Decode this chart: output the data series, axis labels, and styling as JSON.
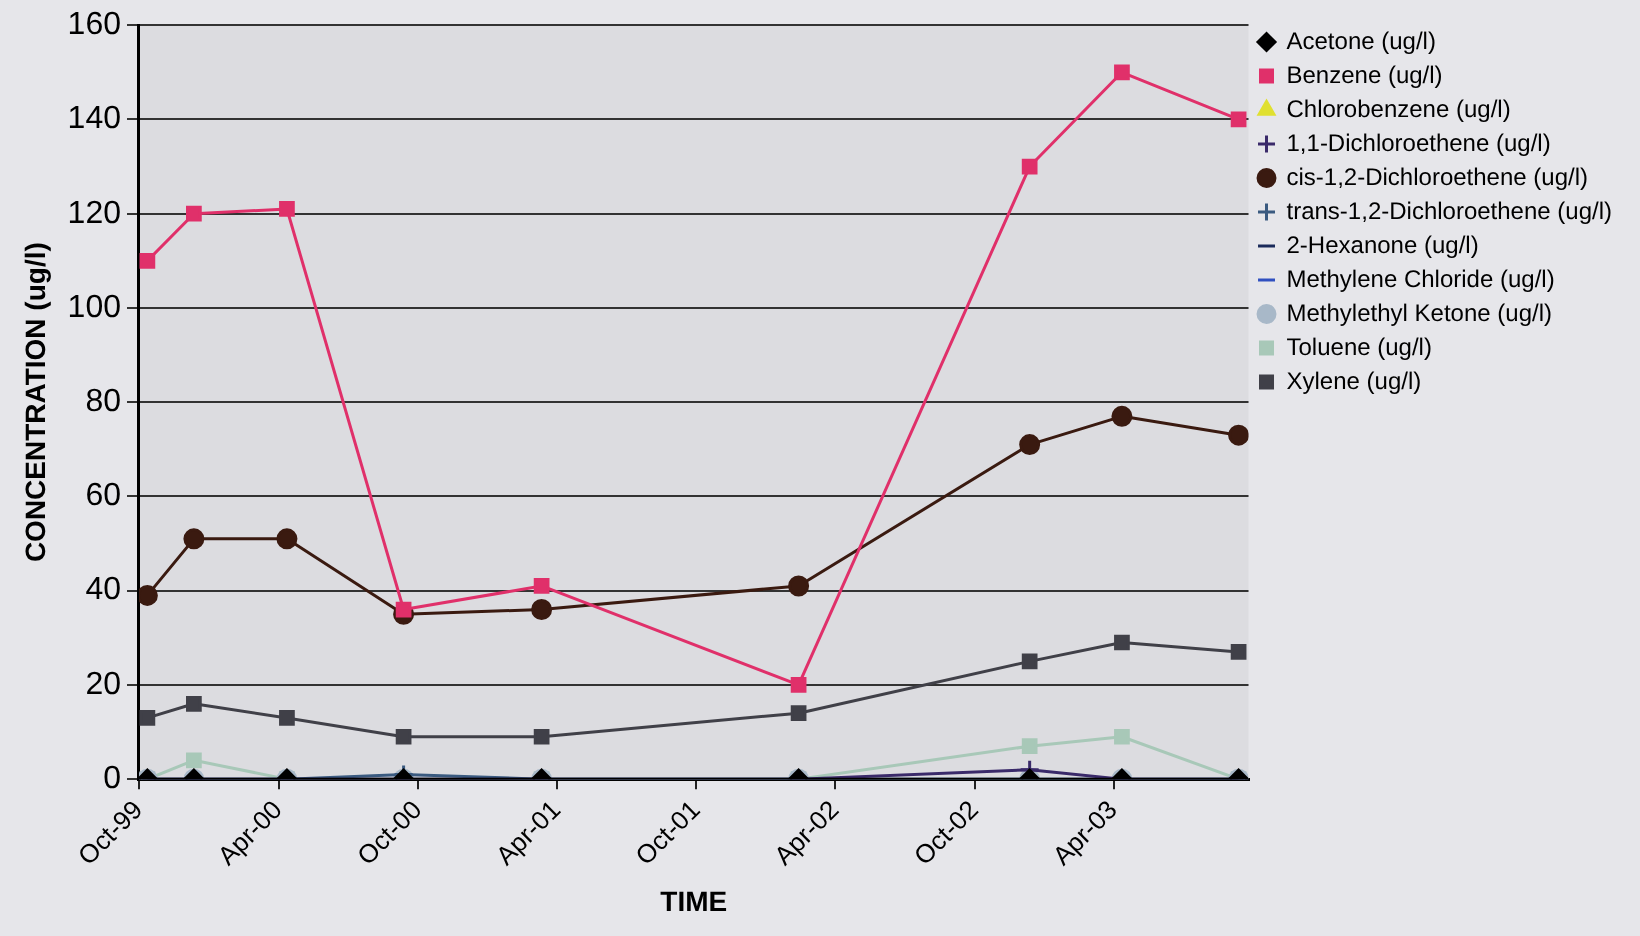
{
  "chart_data": {
    "type": "line",
    "xlabel": "TIME",
    "ylabel": "CONCENTRATION (ug/l)",
    "x": [
      "1999-10-12",
      "1999-12-12",
      "2000-04-12",
      "2000-09-12",
      "2001-03-12",
      "2002-02-12",
      "2002-12-12",
      "2003-04-12",
      "2003-09-12"
    ],
    "xlim": [
      "1999-10-01",
      "2003-09-25"
    ],
    "xticks": [
      {
        "value": "1999-10-01",
        "label": "Oct-99"
      },
      {
        "value": "2000-04-01",
        "label": "Apr-00"
      },
      {
        "value": "2000-10-01",
        "label": "Oct-00"
      },
      {
        "value": "2001-04-01",
        "label": "Apr-01"
      },
      {
        "value": "2001-10-01",
        "label": "Oct-01"
      },
      {
        "value": "2002-04-01",
        "label": "Apr-02"
      },
      {
        "value": "2002-10-01",
        "label": "Oct-02"
      },
      {
        "value": "2003-04-01",
        "label": "Apr-03"
      }
    ],
    "ylim": [
      0,
      160
    ],
    "yticks": [
      0,
      20,
      40,
      60,
      80,
      100,
      120,
      140,
      160
    ],
    "grid": "y",
    "legend": "right",
    "series": [
      {
        "name": "Acetone (ug/l)",
        "color": "#000000",
        "marker": "diamond",
        "values": [
          0,
          0,
          0,
          0,
          0,
          0,
          0,
          0,
          0
        ]
      },
      {
        "name": "Benzene (ug/l)",
        "color": "#e0306a",
        "marker": "square",
        "values": [
          110,
          120,
          121,
          36,
          41,
          20,
          130,
          150,
          140
        ]
      },
      {
        "name": "Chlorobenzene (ug/l)",
        "color": "#e0e030",
        "marker": "triangle",
        "values": [
          null,
          null,
          null,
          null,
          null,
          null,
          null,
          null,
          null
        ]
      },
      {
        "name": "1,1-Dichloroethene (ug/l)",
        "color": "#3a2a6a",
        "marker": "cross",
        "values": [
          0,
          0,
          0,
          0,
          0,
          0,
          2,
          0,
          0
        ]
      },
      {
        "name": "cis-1,2-Dichloroethene (ug/l)",
        "color": "#3a1a10",
        "marker": "circle",
        "values": [
          39,
          51,
          51,
          35,
          36,
          41,
          71,
          77,
          73
        ]
      },
      {
        "name": "trans-1,2-Dichloroethene (ug/l)",
        "color": "#3a5a80",
        "marker": "cross",
        "values": [
          0,
          0,
          0,
          1,
          0,
          0,
          0,
          0,
          0
        ]
      },
      {
        "name": "2-Hexanone (ug/l)",
        "color": "#1a2a5a",
        "marker": "none",
        "values": [
          null,
          null,
          null,
          null,
          null,
          null,
          null,
          null,
          null
        ]
      },
      {
        "name": "Methylene Chloride (ug/l)",
        "color": "#3050c0",
        "marker": "none",
        "values": [
          null,
          null,
          null,
          null,
          null,
          null,
          null,
          null,
          null
        ]
      },
      {
        "name": "Methylethyl Ketone (ug/l)",
        "color": "#a8b8c8",
        "marker": "circle",
        "values": [
          0,
          0,
          0,
          0,
          0,
          0,
          0,
          0,
          0
        ]
      },
      {
        "name": "Toluene (ug/l)",
        "color": "#a8c8b8",
        "marker": "square",
        "values": [
          0,
          4,
          0,
          null,
          0,
          0,
          7,
          9,
          0
        ]
      },
      {
        "name": "Xylene (ug/l)",
        "color": "#404048",
        "marker": "square",
        "values": [
          13,
          16,
          13,
          9,
          9,
          14,
          25,
          29,
          27
        ]
      }
    ]
  }
}
